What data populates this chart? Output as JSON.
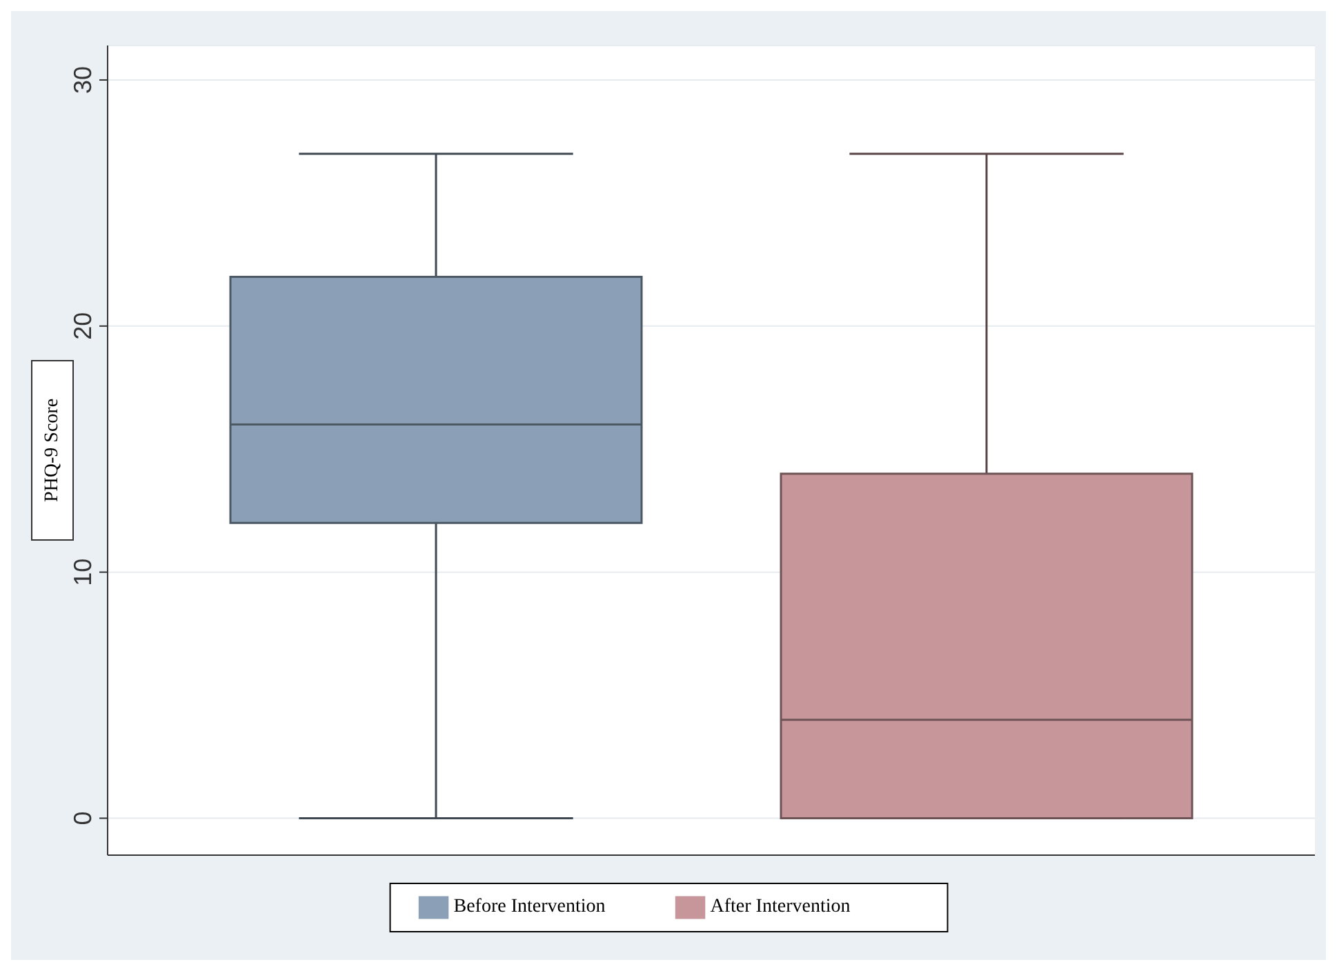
{
  "chart_data": {
    "type": "box",
    "ylabel": "PHQ-9 Score",
    "categories": [
      null
    ],
    "series": [
      {
        "name": "Before Intervention",
        "color": "#8ba0b6",
        "boxes": [
          {
            "low": 0,
            "q1": 12,
            "median": 16,
            "q3": 22,
            "high": 27
          }
        ]
      },
      {
        "name": "After Intervention",
        "color": "#c7969b",
        "boxes": [
          {
            "low": 0,
            "q1": 0,
            "median": 4,
            "q3": 14,
            "high": 27
          }
        ]
      }
    ],
    "ylim": [
      -1.5,
      31.4
    ],
    "yticks": [
      0,
      10,
      20,
      30
    ],
    "grid": "y",
    "legend": "bottom"
  }
}
